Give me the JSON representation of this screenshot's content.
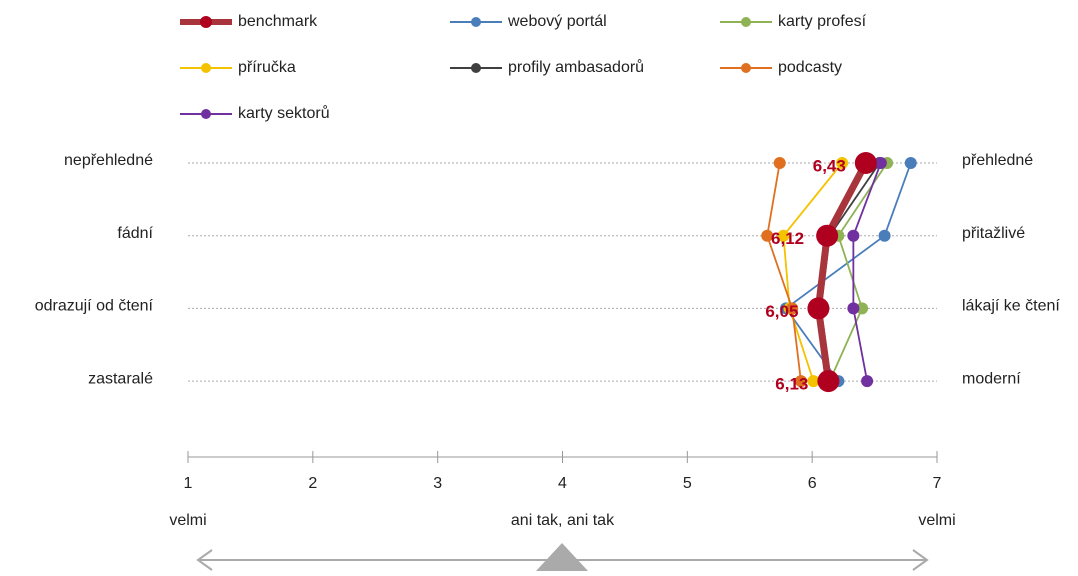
{
  "chart_data": {
    "type": "line",
    "categories": [
      "nepřehledné",
      "fádní",
      "odrazují od čtení",
      "zastaralé"
    ],
    "right_labels": [
      "přehledné",
      "přitažlivé",
      "lákají ke čtení",
      "moderní"
    ],
    "xlim": [
      1,
      7
    ],
    "xticks": [
      1,
      2,
      3,
      4,
      5,
      6,
      7
    ],
    "scale_labels": [
      "velmi",
      "ani tak, ani tak",
      "velmi"
    ],
    "series": [
      {
        "name": "benchmark",
        "color": "#a8343c",
        "values": [
          6.43,
          6.12,
          6.05,
          6.13
        ],
        "value_labels": [
          "6,43",
          "6,12",
          "6,05",
          "6,13"
        ]
      },
      {
        "name": "webový portál",
        "color": "#4a7ebb",
        "values": [
          6.79,
          6.58,
          5.79,
          6.21
        ]
      },
      {
        "name": "karty profesí",
        "color": "#8fb254",
        "values": [
          6.6,
          6.21,
          6.4,
          6.14
        ]
      },
      {
        "name": "příručka",
        "color": "#f5c200",
        "values": [
          6.24,
          5.77,
          5.82,
          6.01
        ]
      },
      {
        "name": "profily ambasadorů",
        "color": "#404040",
        "values": [
          6.54,
          6.14,
          6.07,
          6.15
        ]
      },
      {
        "name": "podcasty",
        "color": "#e07020",
        "values": [
          5.74,
          5.64,
          5.84,
          5.91
        ]
      },
      {
        "name": "karty sektorů",
        "color": "#7030a0",
        "values": [
          6.55,
          6.33,
          6.33,
          6.44
        ]
      }
    ]
  }
}
